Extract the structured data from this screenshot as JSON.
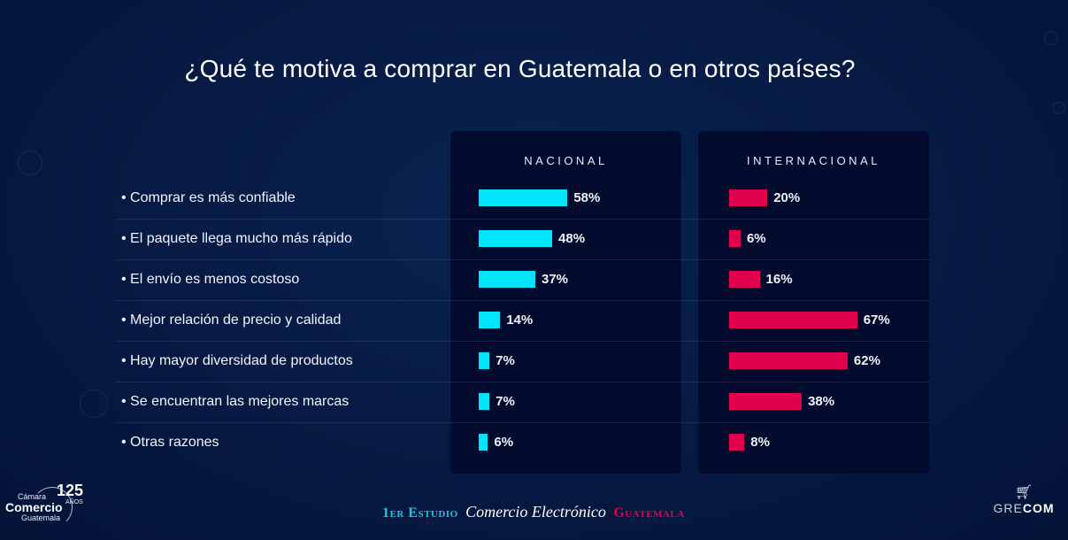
{
  "title": "¿Qué te motiva a comprar en Guatemala o en otros países?",
  "chart_data": {
    "type": "bar",
    "orientation": "horizontal",
    "title": "¿Qué te motiva a comprar en Guatemala o en otros países?",
    "categories": [
      "Comprar es más confiable",
      "El paquete llega mucho más rápido",
      "El envío es menos costoso",
      "Mejor relación de precio y calidad",
      "Hay mayor diversidad de productos",
      "Se encuentran las mejores marcas",
      "Otras razones"
    ],
    "series": [
      {
        "name": "NACIONAL",
        "color": "#00e5fb",
        "values": [
          58,
          48,
          37,
          14,
          7,
          7,
          6
        ],
        "labels": [
          "58%",
          "48%",
          "37%",
          "14%",
          "7%",
          "7%",
          "6%"
        ]
      },
      {
        "name": "INTERNACIONAL",
        "color": "#e0004d",
        "values": [
          20,
          6,
          16,
          67,
          62,
          38,
          8
        ],
        "labels": [
          "20%",
          "6%",
          "16%",
          "67%",
          "62%",
          "38%",
          "8%"
        ]
      }
    ],
    "unit": "%",
    "xlabel": "",
    "ylabel": "",
    "grid": false
  },
  "footer": {
    "part1": "1er Estudio",
    "part2": "Comercio Electrónico",
    "part3": "Guatemala"
  },
  "logo_left": {
    "line1": "Cámara",
    "line2": "Comercio",
    "line3": "Guatemala",
    "years": "125",
    "years_label": "AÑOS"
  },
  "logo_right": {
    "text_light": "GRE",
    "text_bold": "COM"
  }
}
